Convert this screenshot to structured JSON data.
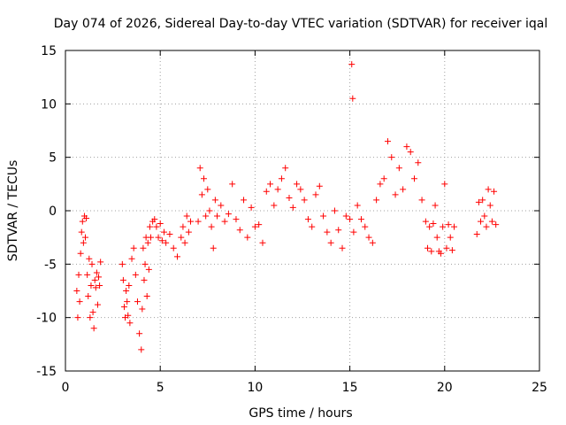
{
  "chart_data": {
    "type": "scatter",
    "title": "Day 074 of 2026, Sidereal Day-to-day VTEC variation (SDTVAR) for receiver iqal",
    "xlabel": "GPS time / hours",
    "ylabel": "SDTVAR / TECUs",
    "xlim": [
      0,
      25
    ],
    "ylim": [
      -15,
      15
    ],
    "xticks": [
      0,
      5,
      10,
      15,
      20,
      25
    ],
    "yticks": [
      -15,
      -10,
      -5,
      0,
      5,
      10,
      15
    ],
    "xtick_labels": [
      "0",
      "5",
      "10",
      "15",
      "20",
      "25"
    ],
    "ytick_labels": [
      "-15",
      "-10",
      "-5",
      "0",
      "5",
      "10",
      "15"
    ],
    "grid": true,
    "marker": "+",
    "marker_color": "#ff0000",
    "series": [
      {
        "name": "SDTVAR",
        "x": [
          0.6,
          0.65,
          0.7,
          0.75,
          0.8,
          0.85,
          0.9,
          0.95,
          1.0,
          1.05,
          1.1,
          1.15,
          1.2,
          1.25,
          1.3,
          1.35,
          1.4,
          1.45,
          1.5,
          1.55,
          1.6,
          1.65,
          1.7,
          1.75,
          1.8,
          1.85,
          3.0,
          3.05,
          3.1,
          3.15,
          3.2,
          3.25,
          3.3,
          3.35,
          3.4,
          3.5,
          3.6,
          3.7,
          3.8,
          3.9,
          4.0,
          4.05,
          4.1,
          4.15,
          4.2,
          4.25,
          4.3,
          4.35,
          4.4,
          4.45,
          4.5,
          4.6,
          4.7,
          4.8,
          4.9,
          5.0,
          5.1,
          5.2,
          5.3,
          5.5,
          5.7,
          5.9,
          6.1,
          6.2,
          6.3,
          6.4,
          6.5,
          6.6,
          7.0,
          7.1,
          7.2,
          7.3,
          7.4,
          7.5,
          7.6,
          7.7,
          7.8,
          7.9,
          8.0,
          8.2,
          8.4,
          8.6,
          8.8,
          9.0,
          9.2,
          9.4,
          9.6,
          9.8,
          10.0,
          10.2,
          10.4,
          10.6,
          10.8,
          11.0,
          11.2,
          11.4,
          11.6,
          11.8,
          12.0,
          12.2,
          12.4,
          12.6,
          12.8,
          13.0,
          13.2,
          13.4,
          13.6,
          13.8,
          14.0,
          14.2,
          14.4,
          14.6,
          14.8,
          15.0,
          15.1,
          15.15,
          15.2,
          15.4,
          15.6,
          15.8,
          16.0,
          16.2,
          16.4,
          16.6,
          16.8,
          17.0,
          17.2,
          17.4,
          17.6,
          17.8,
          18.0,
          18.2,
          18.4,
          18.6,
          18.8,
          19.0,
          19.1,
          19.2,
          19.3,
          19.4,
          19.5,
          19.6,
          19.7,
          19.8,
          19.9,
          20.0,
          20.1,
          20.2,
          20.3,
          20.4,
          20.5,
          21.7,
          21.8,
          21.9,
          22.0,
          22.1,
          22.2,
          22.3,
          22.4,
          22.5,
          22.6,
          22.7
        ],
        "y": [
          -7.5,
          -10,
          -6,
          -8.5,
          -4,
          -2,
          -1,
          -3,
          -0.5,
          -2.5,
          -0.7,
          -6,
          -8,
          -4.5,
          -10,
          -7,
          -5,
          -9.5,
          -11,
          -6.5,
          -7.2,
          -5.8,
          -8.8,
          -6.2,
          -7,
          -4.8,
          -5,
          -6.5,
          -9,
          -10,
          -7.5,
          -8.5,
          -9.8,
          -7,
          -10.5,
          -4.5,
          -3.5,
          -6,
          -8.5,
          -11.5,
          -13,
          -9.2,
          -3.5,
          -6.5,
          -5,
          -2.5,
          -8,
          -3,
          -5.5,
          -1.5,
          -2.5,
          -1,
          -0.8,
          -1.5,
          -2.5,
          -1.2,
          -2.8,
          -2,
          -3,
          -2.2,
          -3.5,
          -4.3,
          -2.5,
          -1.5,
          -3,
          -0.5,
          -2,
          -1,
          -1,
          4,
          1.5,
          3,
          -0.5,
          2,
          0,
          -1.5,
          -3.5,
          1,
          -0.5,
          0.5,
          -1,
          -0.3,
          2.5,
          -0.8,
          -1.8,
          1,
          -2.5,
          0.3,
          -1.5,
          -1.3,
          -3,
          1.8,
          2.5,
          0.5,
          2,
          3,
          4,
          1.2,
          0.3,
          2.5,
          2,
          1,
          -0.8,
          -1.5,
          1.5,
          2.3,
          -0.5,
          -2,
          -3,
          0,
          -1.8,
          -3.5,
          -0.5,
          -0.8,
          13.7,
          10.5,
          -2,
          0.5,
          -0.8,
          -1.5,
          -2.5,
          -3,
          1,
          2.5,
          3,
          6.5,
          5,
          1.5,
          4,
          2,
          6,
          5.5,
          3,
          4.5,
          1,
          -1,
          -3.5,
          -1.5,
          -3.8,
          -1.2,
          0.5,
          -2.5,
          -3.8,
          -4,
          -1.5,
          2.5,
          -3.5,
          -1.3,
          -2.5,
          -3.7,
          -1.5,
          -2.2,
          0.8,
          -1,
          1,
          -0.5,
          -1.5,
          2,
          0.5,
          -1,
          1.8,
          -1.3
        ]
      }
    ]
  }
}
